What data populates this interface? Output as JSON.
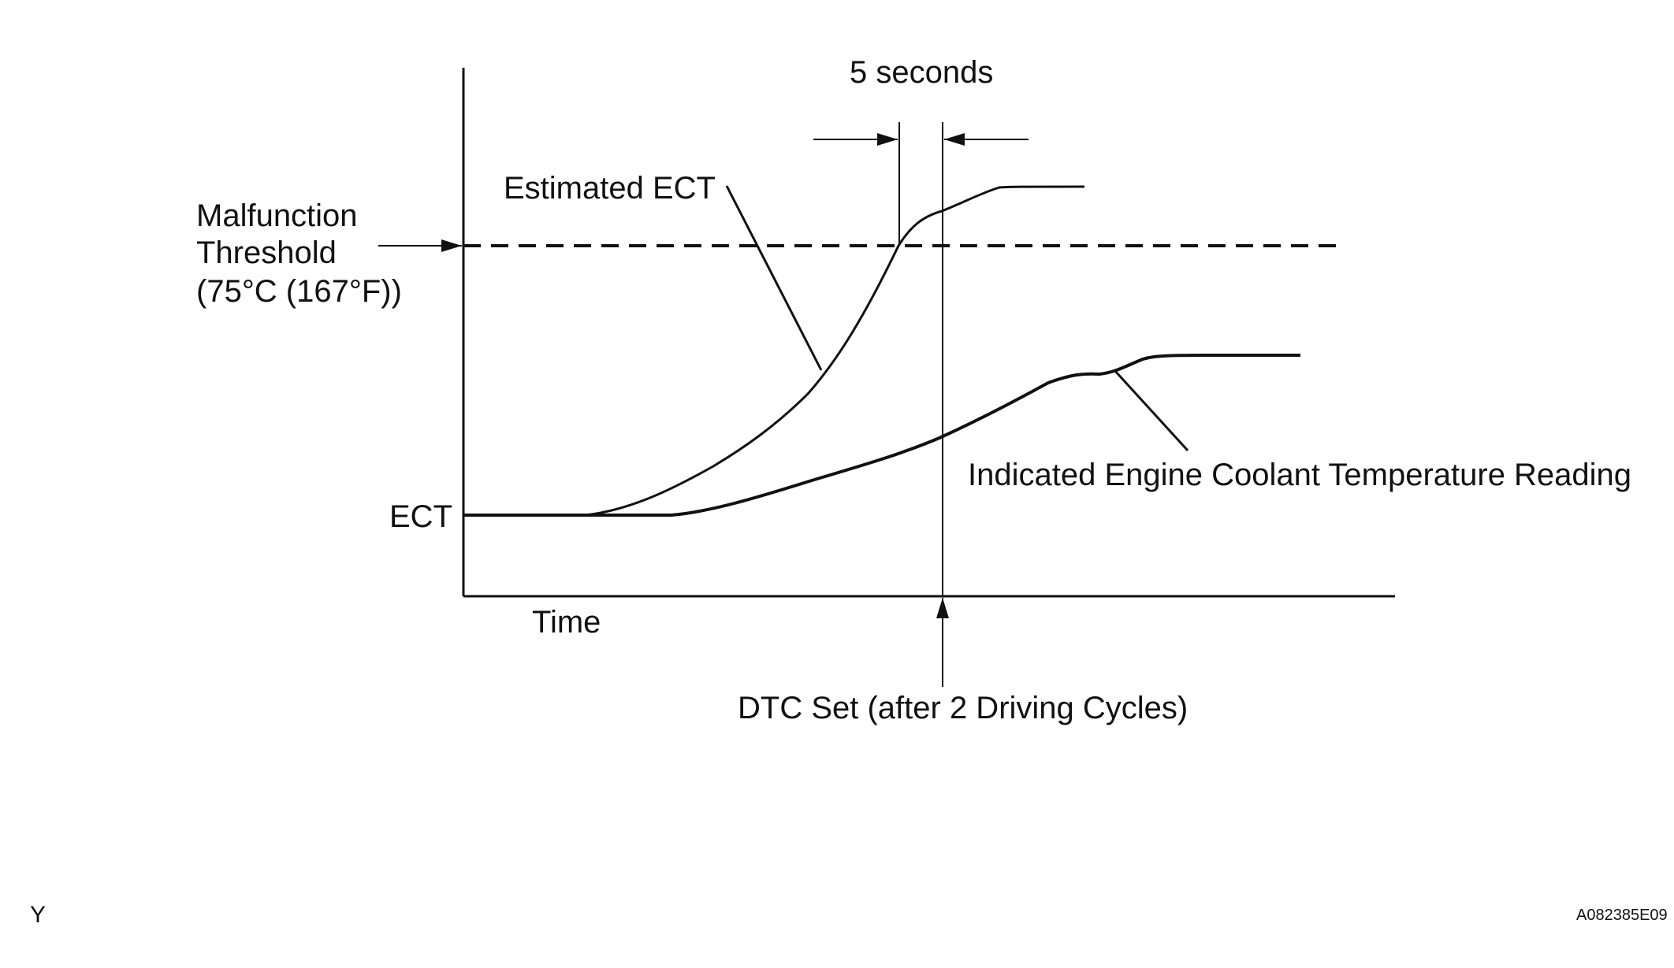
{
  "labels": {
    "five_seconds": "5 seconds",
    "estimated_ect": "Estimated ECT",
    "threshold_line1": "Malfunction",
    "threshold_line2": "Threshold",
    "threshold_line3": "(75°C (167°F))",
    "ect": "ECT",
    "time": "Time",
    "indicated_reading": "Indicated Engine Coolant Temperature Reading",
    "dtc_set": "DTC Set (after 2 Driving Cycles)",
    "corner_letter": "Y",
    "figure_code": "A082385E09"
  }
}
